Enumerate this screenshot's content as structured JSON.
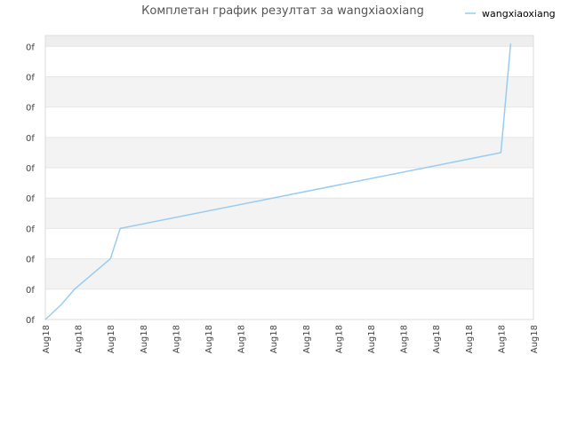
{
  "chart_data": {
    "type": "line",
    "title": "Комплетан график резултат за wangxiaoxiang",
    "xlabel": "",
    "ylabel": "",
    "x_tick_labels": [
      "Aug18",
      "Aug18",
      "Aug18",
      "Aug18",
      "Aug18",
      "Aug18",
      "Aug18",
      "Aug18",
      "Aug18",
      "Aug18",
      "Aug18",
      "Aug18",
      "Aug18",
      "Aug18",
      "Aug18",
      "Aug18"
    ],
    "y_tick_labels": [
      "0f",
      "0f",
      "0f",
      "0f",
      "0f",
      "0f",
      "0f",
      "0f",
      "0f",
      "0f"
    ],
    "ylim": [
      0,
      9.36
    ],
    "legend_position": "top-right",
    "grid": true,
    "series": [
      {
        "name": "wangxiaoxiang",
        "color": "#99ccf0",
        "x": [
          0,
          0.5,
          0.9,
          2.0,
          2.3,
          14.0,
          14.3
        ],
        "y": [
          0,
          0.5,
          1.0,
          2.0,
          3.0,
          5.5,
          9.1
        ]
      }
    ]
  }
}
